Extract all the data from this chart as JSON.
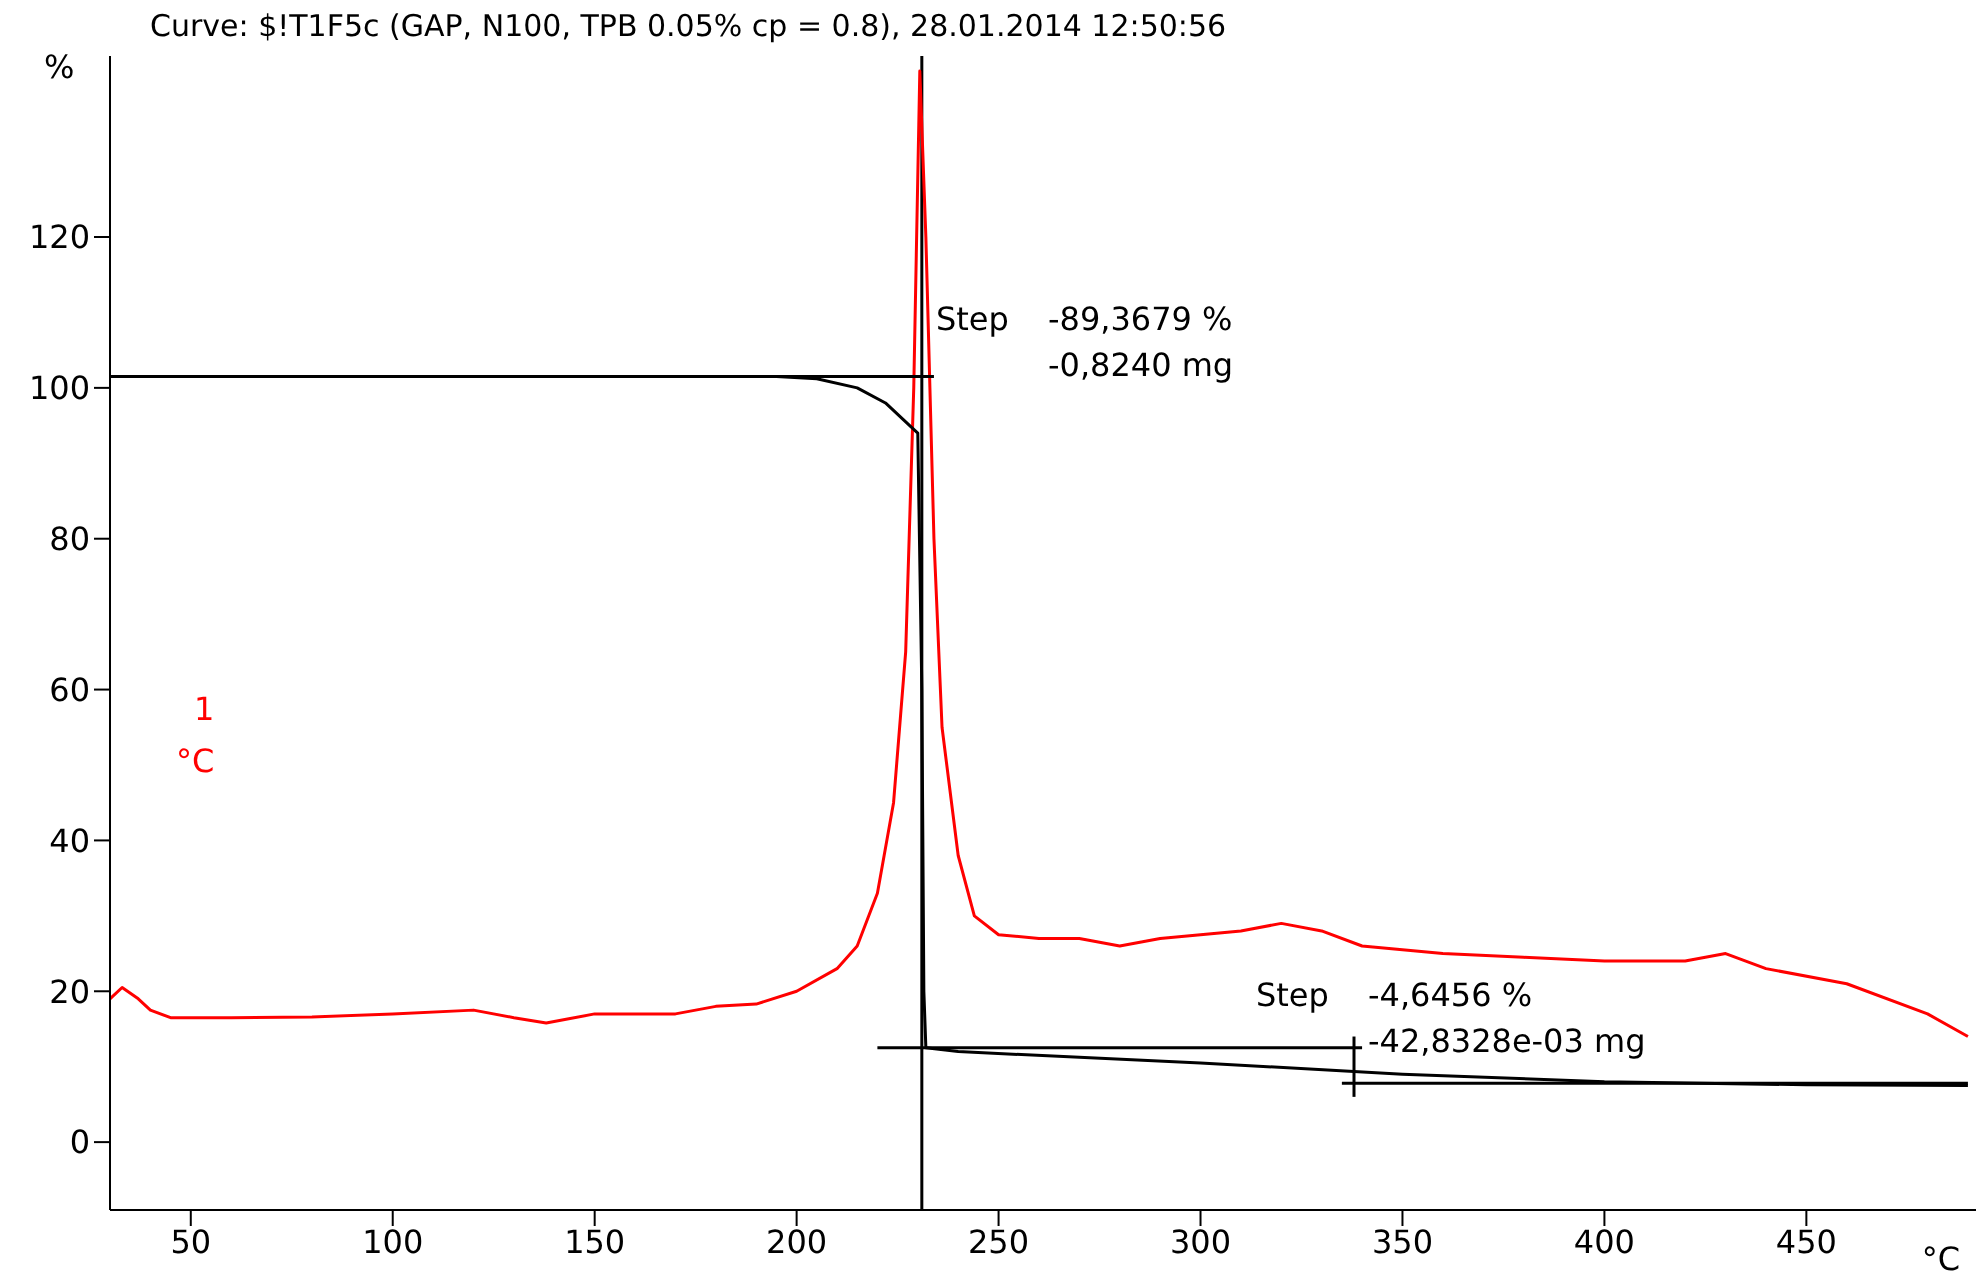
{
  "chart_data": {
    "type": "line",
    "title": "Curve: $!T1F5c (GAP, N100, TPB 0.05% cp = 0.8), 28.01.2014 12:50:56",
    "xlabel": "°C",
    "ylabel": "%",
    "xlim": [
      30,
      492
    ],
    "ylim": [
      -9,
      144
    ],
    "xticks": [
      50,
      100,
      150,
      200,
      250,
      300,
      350,
      400,
      450
    ],
    "yticks": [
      0,
      20,
      40,
      60,
      80,
      100,
      120
    ],
    "grid": false,
    "legend": false,
    "marker": "none",
    "line_style": "solid",
    "series": [
      {
        "color": "#ff0000",
        "x": [
          30,
          33,
          37,
          40,
          45,
          60,
          80,
          100,
          120,
          130,
          138,
          150,
          170,
          180,
          190,
          200,
          210,
          215,
          220,
          224,
          227,
          229,
          230.5,
          232,
          234,
          236,
          240,
          244,
          250,
          260,
          270,
          280,
          290,
          300,
          310,
          320,
          330,
          340,
          360,
          380,
          400,
          420,
          430,
          440,
          460,
          480,
          490
        ],
        "values": [
          19,
          20.5,
          19,
          17.5,
          16.5,
          16.5,
          16.6,
          17,
          17.5,
          16.5,
          15.8,
          17,
          17,
          18,
          18.3,
          20,
          23,
          26,
          33,
          45,
          65,
          100,
          142,
          120,
          80,
          55,
          38,
          30,
          27.5,
          27,
          27,
          26,
          27,
          27.5,
          28,
          29,
          28,
          26,
          25,
          24.5,
          24,
          24,
          25,
          23,
          21,
          17,
          14
        ]
      },
      {
        "color": "#000000",
        "x": [
          30,
          195,
          205,
          215,
          222,
          228,
          230,
          231,
          231.5,
          232,
          240,
          300,
          350,
          400,
          450,
          490
        ],
        "values": [
          101.5,
          101.5,
          101.2,
          100,
          98,
          95,
          94,
          60,
          20,
          12.5,
          12,
          10.5,
          9,
          8,
          7.6,
          7.5
        ]
      },
      {
        "color": "#000000",
        "x": [
          30,
          234
        ],
        "values": [
          101.5,
          101.5
        ]
      },
      {
        "color": "#000000",
        "x": [
          220,
          340
        ],
        "values": [
          12.5,
          12.5
        ]
      },
      {
        "color": "#000000",
        "x": [
          335,
          490
        ],
        "values": [
          7.8,
          7.8
        ]
      },
      {
        "color": "#000000",
        "x": [
          338,
          338
        ],
        "values": [
          6,
          14
        ]
      }
    ],
    "ref_lines": [
      {
        "axis": "x",
        "value": 231,
        "color": "#000000"
      }
    ],
    "annotations": [
      "Step",
      "-89,3679 %",
      "-0,8240 mg",
      "Step",
      "-4,6456 %",
      "-42,8328e-03 mg",
      "1",
      "°C"
    ]
  }
}
